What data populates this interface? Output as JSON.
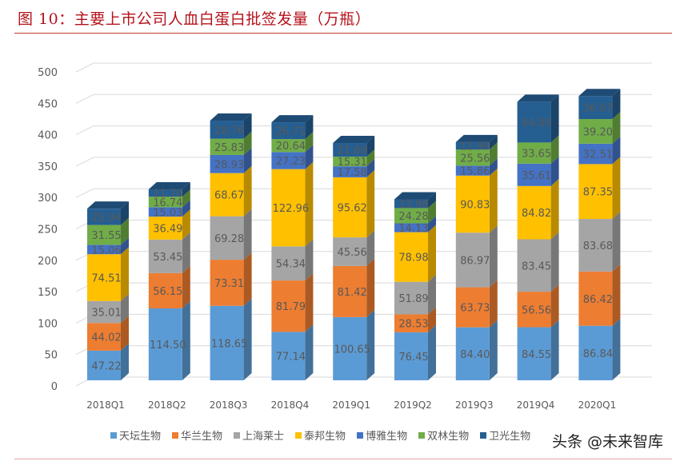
{
  "chart_data": {
    "type": "bar",
    "stacked": true,
    "three_d": true,
    "title": "图 10：主要上市公司人血白蛋白批签发量（万瓶）",
    "categories": [
      "2018Q1",
      "2018Q2",
      "2018Q3",
      "2018Q4",
      "2019Q1",
      "2019Q2",
      "2019Q3",
      "2019Q4",
      "2020Q1"
    ],
    "ylim": [
      0,
      500
    ],
    "yticks": [
      0,
      50,
      100,
      150,
      200,
      250,
      300,
      350,
      400,
      450,
      500
    ],
    "grid": true,
    "legend_position": "bottom",
    "series": [
      {
        "name": "天坛生物",
        "color": "#5B9BD5",
        "values": [
          47.22,
          114.5,
          118.65,
          77.14,
          100.65,
          76.45,
          84.4,
          84.55,
          86.84
        ]
      },
      {
        "name": "华兰生物",
        "color": "#ED7D31",
        "values": [
          44.02,
          56.15,
          73.31,
          81.79,
          81.42,
          28.53,
          63.73,
          56.56,
          86.42
        ]
      },
      {
        "name": "上海莱士",
        "color": "#A5A5A5",
        "values": [
          35.01,
          53.45,
          69.28,
          54.34,
          45.56,
          51.89,
          86.97,
          83.45,
          83.68
        ]
      },
      {
        "name": "泰邦生物",
        "color": "#FFC000",
        "values": [
          74.51,
          36.49,
          68.67,
          122.96,
          95.62,
          78.98,
          90.83,
          84.82,
          87.35
        ]
      },
      {
        "name": "博雅生物",
        "color": "#4472C4",
        "values": [
          15.06,
          15.03,
          28.93,
          27.23,
          17.58,
          14.13,
          15.86,
          35.61,
          32.51
        ]
      },
      {
        "name": "双林生物",
        "color": "#70AD47",
        "values": [
          31.55,
          16.74,
          25.83,
          20.64,
          15.31,
          24.28,
          25.56,
          33.65,
          39.2
        ]
      },
      {
        "name": "卫光生物",
        "color": "#255E91",
        "values": [
          25.94,
          11.7,
          28.76,
          26.71,
          21.69,
          13.98,
          11.99,
          64.89,
          36.67
        ]
      }
    ]
  },
  "watermark": "头条 @未来智库"
}
